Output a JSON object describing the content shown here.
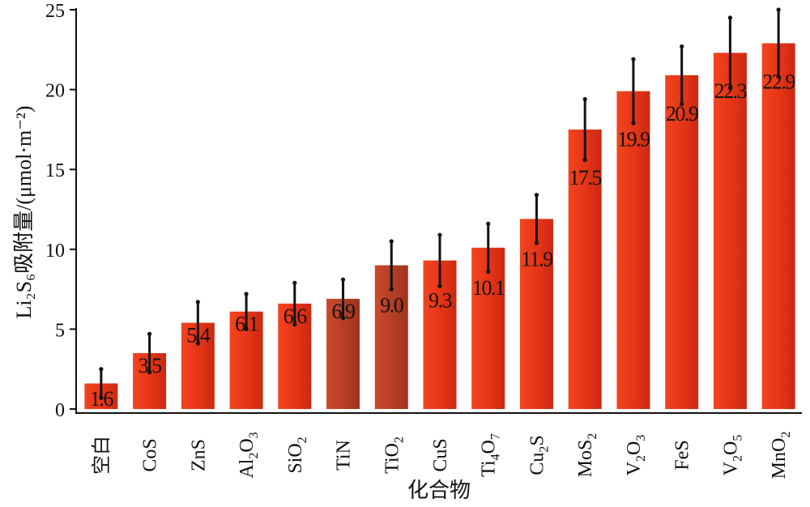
{
  "chart_data": {
    "type": "bar",
    "xlabel": "化合物",
    "ylabel": "Li₂S₆吸附量/(μmol·m⁻²)",
    "ylim": [
      0,
      25
    ],
    "yticks": [
      0,
      5,
      10,
      15,
      20,
      25
    ],
    "grid": false,
    "categories": [
      "空白",
      "CoS",
      "ZnS",
      "Al2O3",
      "SiO2",
      "TiN",
      "TiO2",
      "CuS",
      "Ti4O7",
      "Cu2S",
      "MoS2",
      "V2O3",
      "FeS",
      "V2O5",
      "MnO2"
    ],
    "value_labels": [
      "1.6",
      "3.5",
      "5.4",
      "6.1",
      "6.6",
      "6.9",
      "9.0",
      "9.3",
      "10.1",
      "11.9",
      "17.5",
      "19.9",
      "20.9",
      "22.3",
      "22.9"
    ],
    "values": [
      1.6,
      3.5,
      5.4,
      6.1,
      6.6,
      6.9,
      9.0,
      9.3,
      10.1,
      11.9,
      17.5,
      19.9,
      20.9,
      22.3,
      22.9
    ],
    "errors": [
      0.9,
      1.2,
      1.3,
      1.1,
      1.3,
      1.2,
      1.5,
      1.6,
      1.5,
      1.5,
      1.9,
      2.0,
      1.8,
      2.2,
      2.1
    ],
    "bar_colors": [
      "#e8351b",
      "#e8351b",
      "#e8351b",
      "#e8351b",
      "#e8351b",
      "#c2432a",
      "#c2432a",
      "#e8351b",
      "#e8351b",
      "#e8351b",
      "#e8351b",
      "#e8351b",
      "#e8351b",
      "#e8351b",
      "#e8351b"
    ]
  }
}
